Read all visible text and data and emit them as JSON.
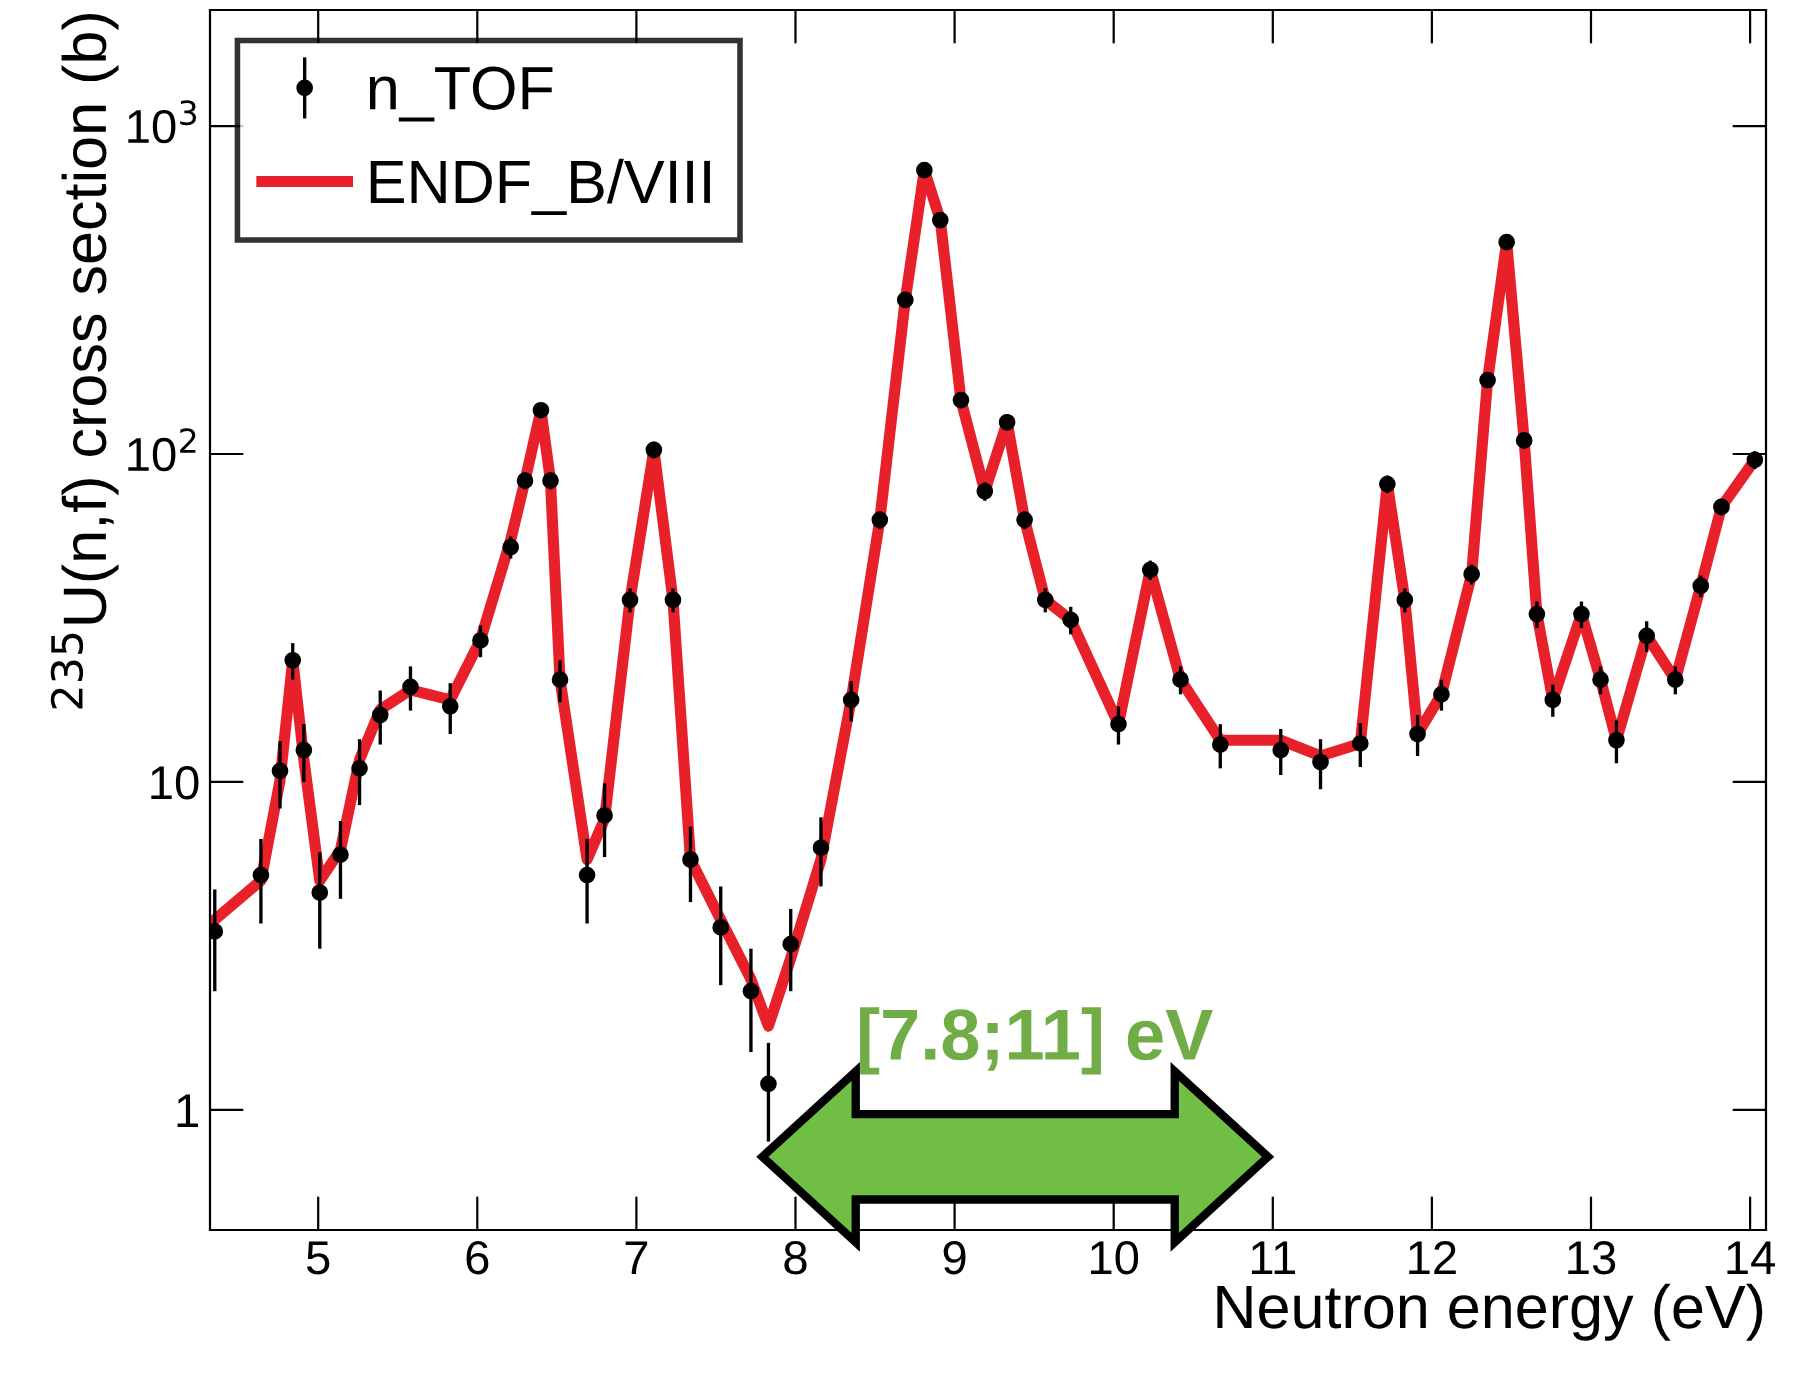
{
  "chart_data": {
    "type": "line",
    "xlabel": "Neutron energy (eV)",
    "ylabel": "$^{235}$U(n,f) cross section (b)",
    "log": "y",
    "xlim": [
      4.32,
      14.1
    ],
    "ylim": [
      0.43,
      2260
    ],
    "xticks": [
      5,
      6,
      7,
      8,
      9,
      10,
      11,
      12,
      13,
      14
    ],
    "yticks": [
      1,
      10,
      {
        "value": 100,
        "label": "10$^{2}$"
      },
      {
        "value": 1000,
        "label": "10$^{3}$"
      }
    ],
    "grid": false,
    "legend": "top left",
    "x": [
      4.35,
      4.64,
      4.76,
      4.84,
      4.91,
      5.01,
      5.14,
      5.26,
      5.39,
      5.58,
      5.83,
      6.02,
      6.21,
      6.3,
      6.4,
      6.46,
      6.52,
      6.69,
      6.8,
      6.96,
      7.11,
      7.23,
      7.34,
      7.53,
      7.72,
      7.83,
      7.97,
      8.16,
      8.35,
      8.53,
      8.69,
      8.81,
      8.91,
      9.04,
      9.19,
      9.33,
      9.44,
      9.57,
      9.73,
      10.03,
      10.23,
      10.42,
      10.67,
      11.05,
      11.3,
      11.55,
      11.72,
      11.83,
      11.91,
      12.06,
      12.25,
      12.35,
      12.47,
      12.58,
      12.66,
      12.76,
      12.94,
      13.06,
      13.16,
      13.35,
      13.53,
      13.69,
      13.82,
      14.03
    ],
    "series": [
      {
        "name": "n_TOF",
        "type": "scatter",
        "color": "#000000",
        "marker": "circle",
        "values": [
          3.5,
          5.2,
          10.8,
          23.5,
          12.5,
          4.6,
          6.0,
          11.0,
          16.0,
          19.5,
          17.0,
          27.0,
          52,
          83,
          136,
          83,
          20.5,
          5.2,
          7.9,
          35.9,
          103,
          35.9,
          5.8,
          3.6,
          2.3,
          1.2,
          3.2,
          6.3,
          17.8,
          63,
          295,
          734,
          517,
          146,
          77,
          125,
          63,
          35.9,
          31.2,
          15.0,
          44.3,
          20.5,
          13.0,
          12.5,
          11.5,
          13.1,
          81,
          35.9,
          14.0,
          18.5,
          43,
          168,
          443,
          110,
          32.5,
          17.8,
          32.5,
          20.5,
          13.4,
          27.9,
          20.5,
          39.6,
          69,
          96
        ],
        "errors": [
          1.2,
          1.5,
          2.5,
          3,
          2.5,
          1.5,
          1.6,
          2.5,
          3,
          3,
          3,
          3,
          4,
          5,
          7,
          5,
          3,
          1.5,
          2,
          3,
          6,
          3,
          1.5,
          1.2,
          0.8,
          0.4,
          0.9,
          1.5,
          2.5,
          4,
          12,
          30,
          20,
          8,
          5,
          7,
          4,
          3,
          3,
          2,
          3,
          2,
          2,
          2,
          2,
          2,
          5,
          3,
          2,
          2,
          3,
          8,
          20,
          6,
          3,
          2,
          3,
          2,
          2,
          3,
          2,
          3,
          4,
          6
        ]
      },
      {
        "name": "ENDF_B/VIII",
        "color": "#e8202a",
        "line_style": "solid",
        "values": [
          3.8,
          5.0,
          10.1,
          23.5,
          11.7,
          5.0,
          6.2,
          11.7,
          16.6,
          19.1,
          17.8,
          27.1,
          54.7,
          83,
          136,
          83,
          20.5,
          5.8,
          7.7,
          35.9,
          103,
          35.9,
          5.8,
          3.8,
          2.5,
          1.8,
          2.9,
          5.8,
          17.8,
          63,
          295,
          734,
          517,
          146,
          77,
          125,
          63,
          35.9,
          31.2,
          15.0,
          44.3,
          20.5,
          13.4,
          13.4,
          12.0,
          13.1,
          81,
          35.9,
          14.0,
          18.5,
          43,
          168,
          443,
          110,
          32.5,
          17.8,
          32.5,
          20.5,
          13.4,
          27.9,
          20.5,
          39.6,
          69,
          96
        ]
      }
    ],
    "annotations": [
      "[7.8;11] eV"
    ]
  }
}
